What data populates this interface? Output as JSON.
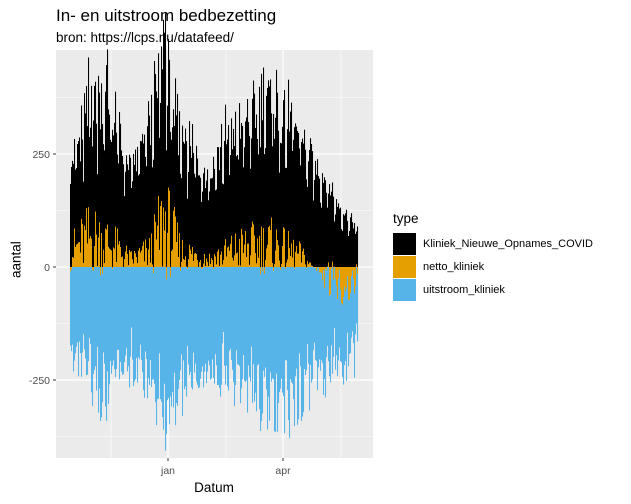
{
  "title": "In- en uitstroom bedbezetting",
  "subtitle": "bron: https://lcps.nu/datafeed/",
  "chart_data": {
    "type": "bar",
    "stacked": true,
    "title": "In- en uitstroom bedbezetting",
    "subtitle": "bron: https://lcps.nu/datafeed/",
    "xlabel": "Datum",
    "ylabel": "aantal",
    "x_ticks": [
      "jan",
      "apr"
    ],
    "y_ticks": [
      -250,
      0,
      250
    ],
    "ylim": [
      -423,
      485
    ],
    "grid": true,
    "legend": {
      "title": "type",
      "position": "right",
      "entries": [
        {
          "label": "Kliniek_Nieuwe_Opnames_COVID",
          "color": "#000000"
        },
        {
          "label": "netto_kliniek",
          "color": "#E69F00"
        },
        {
          "label": "uitstroom_kliniek",
          "color": "#56B4E9"
        }
      ]
    },
    "n_days": 288,
    "series": [
      {
        "name": "Kliniek_Nieuwe_Opnames_COVID",
        "color": "#000000",
        "envelope": [
          [
            0,
            210
          ],
          [
            8,
            230
          ],
          [
            15,
            280
          ],
          [
            22,
            320
          ],
          [
            30,
            330
          ],
          [
            36,
            360
          ],
          [
            42,
            300
          ],
          [
            50,
            250
          ],
          [
            58,
            210
          ],
          [
            66,
            225
          ],
          [
            74,
            270
          ],
          [
            82,
            320
          ],
          [
            88,
            330
          ],
          [
            94,
            430
          ],
          [
            100,
            300
          ],
          [
            110,
            260
          ],
          [
            120,
            250
          ],
          [
            130,
            215
          ],
          [
            140,
            205
          ],
          [
            150,
            255
          ],
          [
            160,
            280
          ],
          [
            170,
            270
          ],
          [
            180,
            300
          ],
          [
            190,
            320
          ],
          [
            200,
            330
          ],
          [
            210,
            320
          ],
          [
            220,
            300
          ],
          [
            232,
            265
          ],
          [
            244,
            240
          ],
          [
            256,
            200
          ],
          [
            266,
            150
          ],
          [
            276,
            120
          ],
          [
            287,
            90
          ]
        ]
      },
      {
        "name": "netto_kliniek",
        "color": "#E69F00",
        "envelope": [
          [
            0,
            40
          ],
          [
            20,
            80
          ],
          [
            40,
            60
          ],
          [
            60,
            20
          ],
          [
            80,
            40
          ],
          [
            94,
            120
          ],
          [
            110,
            40
          ],
          [
            140,
            20
          ],
          [
            170,
            50
          ],
          [
            200,
            60
          ],
          [
            230,
            30
          ],
          [
            260,
            -40
          ],
          [
            287,
            -50
          ]
        ]
      },
      {
        "name": "uitstroom_kliniek",
        "color": "#56B4E9",
        "envelope": [
          [
            0,
            -200
          ],
          [
            10,
            -230
          ],
          [
            20,
            -280
          ],
          [
            30,
            -310
          ],
          [
            40,
            -300
          ],
          [
            50,
            -250
          ],
          [
            60,
            -230
          ],
          [
            70,
            -240
          ],
          [
            80,
            -290
          ],
          [
            90,
            -330
          ],
          [
            98,
            -385
          ],
          [
            110,
            -300
          ],
          [
            125,
            -260
          ],
          [
            140,
            -240
          ],
          [
            160,
            -260
          ],
          [
            180,
            -300
          ],
          [
            200,
            -330
          ],
          [
            215,
            -340
          ],
          [
            230,
            -300
          ],
          [
            245,
            -270
          ],
          [
            260,
            -240
          ],
          [
            275,
            -180
          ],
          [
            287,
            -160
          ]
        ]
      }
    ]
  }
}
